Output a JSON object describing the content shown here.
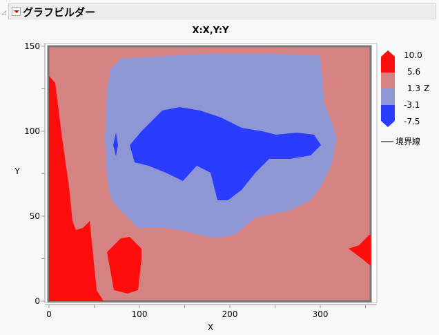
{
  "header": {
    "title": "グラフビルダー"
  },
  "chart_data": {
    "type": "contour",
    "title": "X:X,Y:Y",
    "xlabel": "X",
    "ylabel": "Y",
    "xlim": [
      0,
      360
    ],
    "ylim": [
      0,
      150
    ],
    "xticks": [
      "0",
      "100",
      "200",
      "300"
    ],
    "yticks": [
      "0",
      "50",
      "100",
      "150"
    ],
    "legend": {
      "placement": "right",
      "z_label": "Z",
      "levels": [
        "10.0",
        "5.6",
        "1.3",
        "-3.1",
        "-7.5"
      ],
      "colors": [
        "#ff0d0d",
        "#d48282",
        "#8f96d4",
        "#2a3cff"
      ],
      "boundary_label": "境界線"
    }
  }
}
